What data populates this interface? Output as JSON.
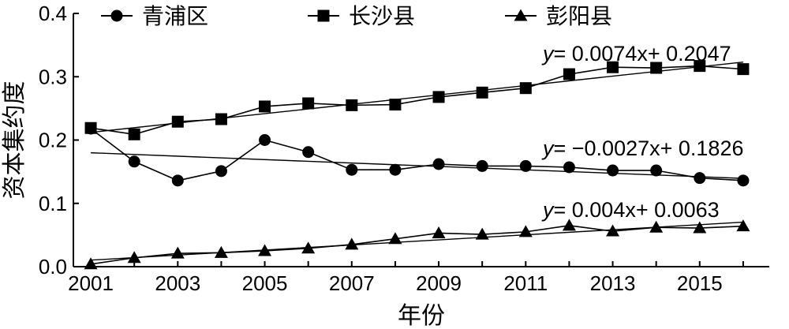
{
  "chart_data": {
    "type": "line",
    "xlabel": "年份",
    "ylabel": "资本集约度",
    "xlim": [
      2000.6,
      2016.6
    ],
    "ylim": [
      0,
      0.4
    ],
    "x_ticks": [
      "2001",
      "2003",
      "2005",
      "2007",
      "2009",
      "2011",
      "2013",
      "2015"
    ],
    "y_ticks": [
      "0.0",
      "0.1",
      "0.2",
      "0.3",
      "0.4"
    ],
    "legend_position": "top-left",
    "grid": false,
    "x": [
      2001,
      2002,
      2003,
      2004,
      2005,
      2006,
      2007,
      2008,
      2009,
      2010,
      2011,
      2012,
      2013,
      2014,
      2015,
      2016
    ],
    "series": [
      {
        "name": "青浦区",
        "marker": "circle",
        "values": [
          0.218,
          0.166,
          0.136,
          0.151,
          0.2,
          0.181,
          0.153,
          0.153,
          0.162,
          0.159,
          0.159,
          0.157,
          0.152,
          0.152,
          0.14,
          0.136
        ],
        "trend": {
          "slope": -0.0027,
          "intercept": 0.1826,
          "equation_prefix": "y",
          "equation_rest": "= −0.0027x+ 0.1826"
        }
      },
      {
        "name": "长沙县",
        "marker": "square",
        "values": [
          0.219,
          0.209,
          0.229,
          0.233,
          0.253,
          0.258,
          0.255,
          0.256,
          0.268,
          0.275,
          0.282,
          0.304,
          0.315,
          0.314,
          0.317,
          0.312
        ],
        "trend": {
          "slope": 0.0074,
          "intercept": 0.2047,
          "equation_prefix": "y",
          "equation_rest": "= 0.0074x+ 0.2047"
        }
      },
      {
        "name": "彭阳县",
        "marker": "triangle",
        "values": [
          0.004,
          0.014,
          0.021,
          0.022,
          0.025,
          0.029,
          0.035,
          0.044,
          0.053,
          0.051,
          0.055,
          0.065,
          0.056,
          0.062,
          0.061,
          0.064
        ],
        "trend": {
          "slope": 0.004,
          "intercept": 0.0063,
          "equation_prefix": "y",
          "equation_rest": "= 0.004x+ 0.0063"
        }
      }
    ]
  }
}
